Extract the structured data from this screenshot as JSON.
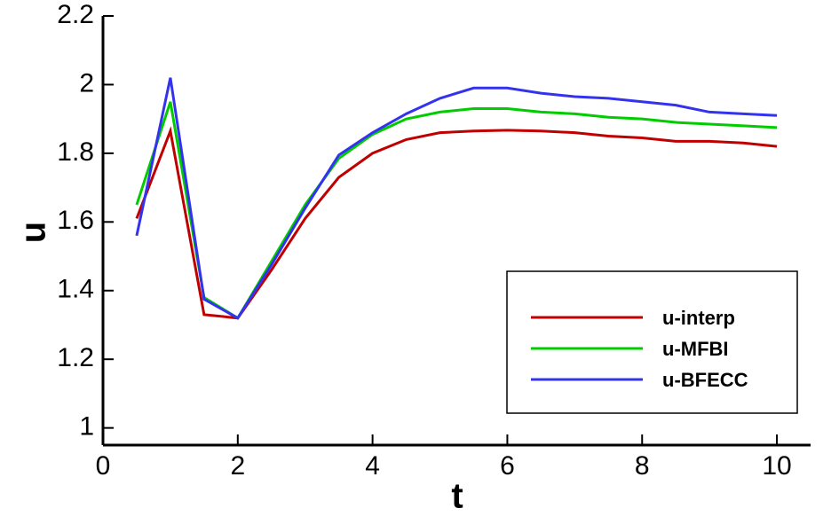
{
  "chart_data": {
    "type": "line",
    "xlabel": "t",
    "ylabel": "u",
    "x": [
      0.5,
      1,
      1.5,
      2,
      2.5,
      3,
      3.5,
      4,
      4.5,
      5,
      5.5,
      6,
      6.5,
      7,
      7.5,
      8,
      8.5,
      9,
      9.5,
      10
    ],
    "series": [
      {
        "name": "u-interp",
        "color": "#c00000",
        "values": [
          1.61,
          1.865,
          1.33,
          1.32,
          1.46,
          1.61,
          1.73,
          1.8,
          1.84,
          1.86,
          1.865,
          1.867,
          1.865,
          1.86,
          1.85,
          1.845,
          1.835,
          1.835,
          1.83,
          1.82
        ]
      },
      {
        "name": "u-MFBI",
        "color": "#00cc00",
        "values": [
          1.65,
          1.95,
          1.38,
          1.32,
          1.485,
          1.65,
          1.785,
          1.855,
          1.9,
          1.92,
          1.93,
          1.93,
          1.92,
          1.915,
          1.905,
          1.9,
          1.89,
          1.885,
          1.88,
          1.875
        ]
      },
      {
        "name": "u-BFECC",
        "color": "#3333ee",
        "values": [
          1.56,
          2.02,
          1.375,
          1.32,
          1.475,
          1.64,
          1.795,
          1.86,
          1.915,
          1.96,
          1.99,
          1.99,
          1.975,
          1.965,
          1.96,
          1.95,
          1.94,
          1.92,
          1.915,
          1.91
        ]
      }
    ],
    "xlim": [
      0,
      10.5
    ],
    "xticks": [
      0,
      2,
      4,
      6,
      8,
      10
    ],
    "ylim": [
      0.95,
      2.2
    ],
    "yticks": [
      1,
      1.2,
      1.4,
      1.6,
      1.8,
      2,
      2.2
    ],
    "legend": "lower-right"
  }
}
